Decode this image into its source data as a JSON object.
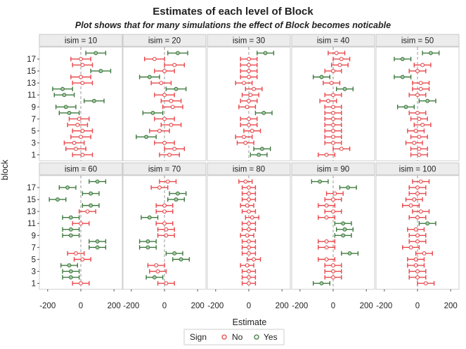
{
  "colors": {
    "No": "#e8474a",
    "Yes": "#3e7a3e"
  },
  "chart_data": {
    "type": "scatter",
    "title": "Estimates of each level of Block",
    "subtitle": "Plot shows that for many simulations the effect of Block becomes noticable",
    "xlabel": "Estimate",
    "ylabel": "block",
    "xlim": [
      -250,
      250
    ],
    "ylim": [
      0,
      19
    ],
    "xticks": [
      -200,
      0,
      200
    ],
    "yticks": [
      1,
      3,
      5,
      7,
      9,
      11,
      13,
      15,
      17
    ],
    "reference_line_x": 0,
    "legend": {
      "title": "Sign",
      "entries": [
        "No",
        "Yes"
      ],
      "position": "bottom"
    },
    "panels": [
      {
        "label": "isim = 10",
        "estimates": [
          10,
          -30,
          -40,
          0,
          10,
          -20,
          -10,
          -70,
          -90,
          80,
          -100,
          -110,
          10,
          0,
          120,
          10,
          0,
          90
        ],
        "halfwidth": 60
      },
      {
        "label": "isim = 20",
        "estimates": [
          30,
          60,
          0,
          -110,
          -30,
          40,
          0,
          -70,
          50,
          40,
          0,
          70,
          -20,
          -90,
          0,
          60,
          -60,
          80
        ],
        "halfwidth": 60
      },
      {
        "label": "isim = 30",
        "estimates": [
          60,
          80,
          -20,
          -30,
          20,
          0,
          0,
          90,
          -10,
          0,
          10,
          30,
          -30,
          0,
          0,
          0,
          0,
          100
        ],
        "halfwidth": 50
      },
      {
        "label": "isim = 40",
        "estimates": [
          -40,
          50,
          0,
          0,
          0,
          0,
          0,
          0,
          0,
          -30,
          0,
          70,
          -10,
          -70,
          0,
          40,
          50,
          20
        ],
        "halfwidth": 50
      },
      {
        "label": "isim = 50",
        "estimates": [
          10,
          10,
          -20,
          10,
          -10,
          30,
          10,
          0,
          -70,
          60,
          0,
          20,
          20,
          -90,
          0,
          30,
          -90,
          80
        ],
        "halfwidth": 50
      },
      {
        "label": "isim = 60",
        "estimates": [
          0,
          -60,
          -60,
          -70,
          10,
          -30,
          100,
          100,
          -60,
          -60,
          0,
          -60,
          40,
          60,
          -140,
          60,
          -80,
          100
        ],
        "halfwidth": 50
      },
      {
        "label": "isim = 70",
        "estimates": [
          10,
          -60,
          -40,
          -50,
          100,
          60,
          -100,
          -100,
          10,
          10,
          0,
          -90,
          0,
          0,
          70,
          80,
          -30,
          20
        ],
        "halfwidth": 50
      },
      {
        "label": "isim = 80",
        "estimates": [
          0,
          0,
          0,
          -10,
          30,
          0,
          0,
          0,
          -10,
          0,
          0,
          20,
          0,
          -10,
          0,
          0,
          0,
          -20
        ],
        "halfwidth": 40
      },
      {
        "label": "isim = 90",
        "estimates": [
          -70,
          0,
          0,
          0,
          -40,
          100,
          -40,
          -40,
          60,
          70,
          60,
          -40,
          0,
          -40,
          0,
          10,
          90,
          -80
        ],
        "halfwidth": 50
      },
      {
        "label": "isim = 100",
        "estimates": [
          50,
          0,
          0,
          -10,
          -10,
          40,
          -40,
          0,
          0,
          -10,
          60,
          0,
          20,
          -40,
          -20,
          0,
          0,
          20
        ],
        "halfwidth": 50
      }
    ]
  }
}
